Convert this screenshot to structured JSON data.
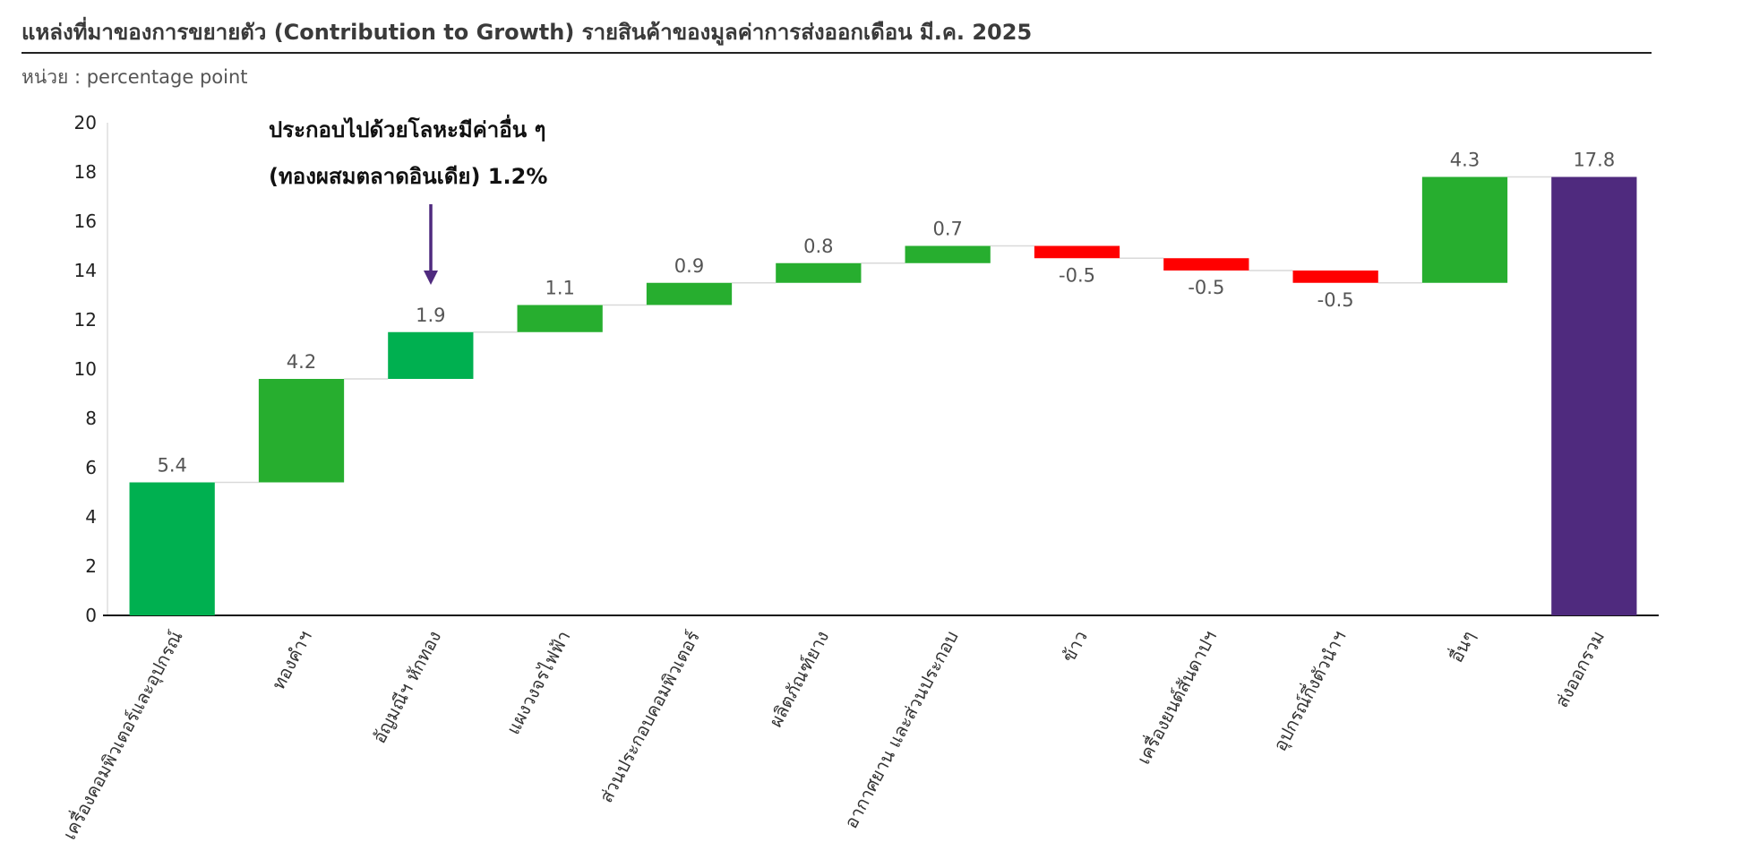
{
  "header": {
    "title": "แหล่งที่มาของการขยายตัว (Contribution to Growth) รายสินค้าของมูลค่าการส่งออกเดือน มี.ค. 2025",
    "unit": "หน่วย : percentage point"
  },
  "annotation": {
    "line1": "ประกอบไปด้วยโลหะมีค่าอื่น ๆ",
    "line2": "(ทองผสมตลาดอินเดีย) 1.2%"
  },
  "colors": {
    "positive": "#27AE2F",
    "positive_alt": "#00B050",
    "negative": "#FF0000",
    "total": "#4F2A7E",
    "arrow": "#4F2A7E"
  },
  "chart_data": {
    "type": "bar",
    "subtype": "waterfall",
    "categories": [
      "เครื่องคอมพิวเตอร์และอุปกรณ์",
      "ทองคำฯ",
      "อัญมณีฯ หักทอง",
      "แผงวงจรไฟฟ้า",
      "ส่วนประกอบคอมพิวเตอร์",
      "ผลิตภัณฑ์ยาง",
      "อากาศยาน และส่วนประกอบ",
      "ข้าว",
      "เครื่องยนต์สันดาปฯ",
      "อุปกรณ์กึ่งตัวนำฯ",
      "อื่นๆ",
      "ส่งออกรวม"
    ],
    "values": [
      5.4,
      4.2,
      1.9,
      1.1,
      0.9,
      0.8,
      0.7,
      -0.5,
      -0.5,
      -0.5,
      4.3,
      17.8
    ],
    "value_labels": [
      "5.4",
      "4.2",
      "1.9",
      "1.1",
      "0.9",
      "0.8",
      "0.7",
      "-0.5",
      "-0.5",
      "-0.5",
      "4.3",
      "17.8"
    ],
    "total_index": 11,
    "ylim": [
      0,
      20
    ],
    "yticks": [
      "0",
      "2",
      "4",
      "6",
      "8",
      "10",
      "12",
      "14",
      "16",
      "18",
      "20"
    ],
    "grid": false
  }
}
